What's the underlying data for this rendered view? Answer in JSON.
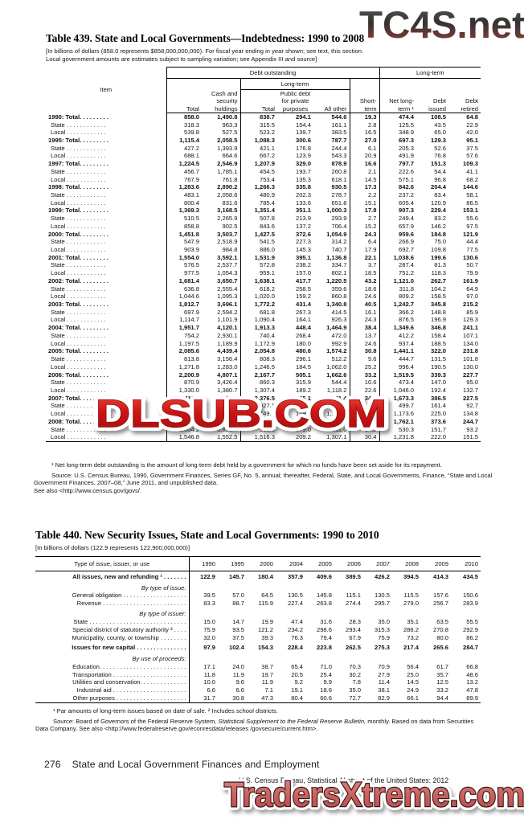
{
  "watermarks": {
    "top": "TC4S.net",
    "middle": "DLSUB.COM",
    "bottom": "TradersXtreme.com"
  },
  "table439": {
    "title": "Table 439. State and Local Governments—Indebtedness: 1990 to 2008",
    "note_line1": "[In billions of dollars (858.0 represents $858,000,000,000). For fiscal year ending in year shown; see text, this section.",
    "note_line2": "Local government amounts are estimates subject to sampling variation; see Appendix III and source]",
    "headers": {
      "item": "Item",
      "debt_outstanding": "Debt outstanding",
      "long_term_group": "Long-term",
      "total": "Total",
      "cash": "Cash and security holdings",
      "long_term_sub": "Long-term",
      "lt_total": "Total",
      "public_debt": "Public debt for private purposes",
      "all_other": "All other",
      "short_term": "Short-term",
      "net_long_term": "Net long-term ¹",
      "debt_issued": "Debt issued",
      "debt_retired": "Debt retired"
    },
    "rows": [
      {
        "label": "1990: Total. . . . . . . . .",
        "bold": true,
        "values": [
          "858.0",
          "1,490.8",
          "838.7",
          "294.1",
          "544.6",
          "19.3",
          "474.4",
          "108.5",
          "64.8"
        ]
      },
      {
        "label": "State . . . . . . . . . . . .",
        "bold": false,
        "values": [
          "318.3",
          "963.3",
          "315.5",
          "154.4",
          "161.1",
          "2.8",
          "125.5",
          "43.5",
          "22.9"
        ]
      },
      {
        "label": "Local . . . . . . . . . . . .",
        "bold": false,
        "values": [
          "539.8",
          "527.5",
          "523.2",
          "139.7",
          "383.5",
          "16.5",
          "348.9",
          "65.0",
          "42.0"
        ]
      },
      {
        "label": "1995: Total. . . . . . . . .",
        "bold": true,
        "values": [
          "1,115.4",
          "2,058.5",
          "1,088.3",
          "300.6",
          "787.7",
          "27.0",
          "697.3",
          "129.3",
          "95.1"
        ]
      },
      {
        "label": "State . . . . . . . . . . . .",
        "bold": false,
        "values": [
          "427.2",
          "1,393.9",
          "421.1",
          "176.8",
          "244.4",
          "6.1",
          "205.3",
          "52.6",
          "37.5"
        ]
      },
      {
        "label": "Local . . . . . . . . . . . .",
        "bold": false,
        "values": [
          "688.1",
          "664.6",
          "667.2",
          "123.9",
          "543.3",
          "20.9",
          "491.9",
          "76.8",
          "57.6"
        ]
      },
      {
        "label": "1997: Total. . . . . . . . .",
        "bold": true,
        "values": [
          "1,224.5",
          "2,546.9",
          "1,207.9",
          "329.0",
          "878.9",
          "16.6",
          "797.7",
          "151.3",
          "109.3"
        ]
      },
      {
        "label": "State . . . . . . . . . . . .",
        "bold": false,
        "values": [
          "456.7",
          "1,785.1",
          "454.5",
          "193.7",
          "260.8",
          "2.1",
          "222.6",
          "54.4",
          "41.1"
        ]
      },
      {
        "label": "Local . . . . . . . . . . . .",
        "bold": false,
        "values": [
          "767.9",
          "761.8",
          "753.4",
          "135.3",
          "618.1",
          "14.5",
          "575.1",
          "96.8",
          "68.2"
        ]
      },
      {
        "label": "1998: Total. . . . . . . . .",
        "bold": true,
        "values": [
          "1,283.6",
          "2,890.2",
          "1,266.3",
          "335.8",
          "930.5",
          "17.3",
          "842.6",
          "204.4",
          "144.6"
        ]
      },
      {
        "label": "State . . . . . . . . . . . .",
        "bold": false,
        "values": [
          "483.1",
          "2,058.6",
          "480.9",
          "202.3",
          "278.7",
          "2.2",
          "237.2",
          "83.4",
          "58.1"
        ]
      },
      {
        "label": "Local . . . . . . . . . . . .",
        "bold": false,
        "values": [
          "800.4",
          "831.6",
          "785.4",
          "133.6",
          "651.8",
          "15.1",
          "605.4",
          "120.9",
          "86.5"
        ]
      },
      {
        "label": "1999: Total. . . . . . . . .",
        "bold": true,
        "values": [
          "1,369.3",
          "3,168.5",
          "1,351.4",
          "351.1",
          "1,000.3",
          "17.8",
          "907.3",
          "229.4",
          "153.1"
        ]
      },
      {
        "label": "State . . . . . . . . . . . .",
        "bold": false,
        "values": [
          "510.5",
          "2,265.9",
          "507.8",
          "213.9",
          "293.9",
          "2.7",
          "249.4",
          "83.2",
          "55.6"
        ]
      },
      {
        "label": "Local . . . . . . . . . . . .",
        "bold": false,
        "values": [
          "858.8",
          "902.5",
          "843.6",
          "137.2",
          "706.4",
          "15.2",
          "657.9",
          "146.2",
          "97.5"
        ]
      },
      {
        "label": "2000: Total. . . . . . . . .",
        "bold": true,
        "values": [
          "1,451.8",
          "3,503.7",
          "1,427.5",
          "372.6",
          "1,054.9",
          "24.3",
          "959.6",
          "184.8",
          "121.9"
        ]
      },
      {
        "label": "State . . . . . . . . . . . .",
        "bold": false,
        "values": [
          "547.9",
          "2,518.9",
          "541.5",
          "227.3",
          "314.2",
          "6.4",
          "266.9",
          "75.0",
          "44.4"
        ]
      },
      {
        "label": "Local . . . . . . . . . . . .",
        "bold": false,
        "values": [
          "903.9",
          "984.8",
          "886.0",
          "145.3",
          "740.7",
          "17.9",
          "692.7",
          "109.8",
          "77.5"
        ]
      },
      {
        "label": "2001: Total. . . . . . . . .",
        "bold": true,
        "values": [
          "1,554.0",
          "3,592.1",
          "1,531.9",
          "395.1",
          "1,136.8",
          "22.1",
          "1,038.6",
          "199.6",
          "130.6"
        ]
      },
      {
        "label": "State . . . . . . . . . . . .",
        "bold": false,
        "values": [
          "576.5",
          "2,537.7",
          "572.8",
          "238.2",
          "334.7",
          "3.7",
          "287.4",
          "81.3",
          "50.7"
        ]
      },
      {
        "label": "Local . . . . . . . . . . . .",
        "bold": false,
        "values": [
          "977.5",
          "1,054.3",
          "959.1",
          "157.0",
          "802.1",
          "18.5",
          "751.2",
          "118.3",
          "79.9"
        ]
      },
      {
        "label": "2002: Total. . . . . . . . .",
        "bold": true,
        "values": [
          "1,681.4",
          "3,650.7",
          "1,638.1",
          "417.7",
          "1,220.5",
          "43.2",
          "1,121.0",
          "262.7",
          "161.9"
        ]
      },
      {
        "label": "State . . . . . . . . . . . .",
        "bold": false,
        "values": [
          "636.8",
          "2,555.4",
          "618.2",
          "258.5",
          "359.6",
          "18.6",
          "311.8",
          "104.2",
          "64.9"
        ]
      },
      {
        "label": "Local . . . . . . . . . . . .",
        "bold": false,
        "values": [
          "1,044.6",
          "1,095.3",
          "1,020.0",
          "159.2",
          "860.8",
          "24.6",
          "809.2",
          "158.5",
          "97.0"
        ]
      },
      {
        "label": "2003: Total. . . . . . . . .",
        "bold": true,
        "values": [
          "1,812.7",
          "3,696.1",
          "1,772.2",
          "431.4",
          "1,340.8",
          "40.5",
          "1,242.7",
          "345.8",
          "215.2"
        ]
      },
      {
        "label": "State . . . . . . . . . . . .",
        "bold": false,
        "values": [
          "697.9",
          "2,594.2",
          "681.8",
          "267.3",
          "414.5",
          "16.1",
          "366.2",
          "148.8",
          "85.9"
        ]
      },
      {
        "label": "Local . . . . . . . . . . . .",
        "bold": false,
        "values": [
          "1,114.7",
          "1,101.9",
          "1,090.4",
          "164.1",
          "926.3",
          "24.3",
          "876.5",
          "196.9",
          "129.3"
        ]
      },
      {
        "label": "2004: Total. . . . . . . . .",
        "bold": true,
        "values": [
          "1,951.7",
          "4,120.1",
          "1,913.3",
          "448.4",
          "1,464.9",
          "38.4",
          "1,349.6",
          "346.8",
          "241.1"
        ]
      },
      {
        "label": "State . . . . . . . . . . . .",
        "bold": false,
        "values": [
          "754.2",
          "2,930.1",
          "740.4",
          "268.4",
          "472.0",
          "13.7",
          "412.2",
          "158.4",
          "107.1"
        ]
      },
      {
        "label": "Local . . . . . . . . . . . .",
        "bold": false,
        "values": [
          "1,197.5",
          "1,189.9",
          "1,172.9",
          "180.0",
          "992.9",
          "24.6",
          "937.4",
          "188.5",
          "134.0"
        ]
      },
      {
        "label": "2005: Total. . . . . . . . .",
        "bold": true,
        "values": [
          "2,085.6",
          "4,439.4",
          "2,054.8",
          "480.6",
          "1,574.2",
          "30.8",
          "1,441.1",
          "322.0",
          "231.8"
        ]
      },
      {
        "label": "State . . . . . . . . . . . .",
        "bold": false,
        "values": [
          "813.8",
          "3,156.4",
          "808.3",
          "296.1",
          "512.2",
          "5.6",
          "444.7",
          "131.5",
          "101.8"
        ]
      },
      {
        "label": "Local . . . . . . . . . . . .",
        "bold": false,
        "values": [
          "1,271.8",
          "1,283.0",
          "1,246.5",
          "184.5",
          "1,062.0",
          "25.2",
          "996.4",
          "190.5",
          "130.0"
        ]
      },
      {
        "label": "2006: Total. . . . . . . . .",
        "bold": true,
        "values": [
          "2,200.9",
          "4,807.1",
          "2,167.7",
          "505.1",
          "1,662.6",
          "33.2",
          "1,519.5",
          "339.3",
          "227.7"
        ]
      },
      {
        "label": "State . . . . . . . . . . . .",
        "bold": false,
        "values": [
          "870.9",
          "3,426.4",
          "860.3",
          "315.9",
          "544.4",
          "10.6",
          "473.4",
          "147.0",
          "95.0"
        ]
      },
      {
        "label": "Local . . . . . . . . . . . .",
        "bold": false,
        "values": [
          "1,330.0",
          "1,380.7",
          "1,307.4",
          "189.2",
          "1,118.2",
          "22.6",
          "1,046.0",
          "192.4",
          "132.7"
        ]
      },
      {
        "label": "2007: Total. . . . . . . . .",
        "bold": true,
        "values": [
          "2,411.3",
          "5,122.7",
          "2,376.5",
          "535.1",
          "1,841.4",
          "34.8",
          "1,673.3",
          "386.5",
          "227.5"
        ]
      },
      {
        "label": "State . . . . . . . . . . . .",
        "bold": false,
        "values": [
          "936.5",
          "3,574.4",
          "927.1",
          "336.0",
          "591.1",
          "9.4",
          "499.7",
          "161.4",
          "92.7"
        ]
      },
      {
        "label": "Local . . . . . . . . . . . .",
        "bold": false,
        "values": [
          "1,474.8",
          "1,548.3",
          "1,449.4",
          "199.1",
          "1,250.3",
          "25.4",
          "1,173.6",
          "225.0",
          "134.8"
        ]
      },
      {
        "label": "2008: Total. . . . . . . . .",
        "bold": true,
        "values": [
          "2,550.9",
          "5,379.0",
          "2,506.3",
          "588.2",
          "1,918.2",
          "44.6",
          "1,762.1",
          "373.6",
          "244.7"
        ]
      },
      {
        "label": "State . . . . . . . . . . . .",
        "bold": false,
        "values": [
          "1,004.2",
          "3,826.4",
          "990.0",
          "379.0",
          "611.0",
          "14.2",
          "530.3",
          "151.7",
          "93.2"
        ]
      },
      {
        "label": "Local . . . . . . . . . . . .",
        "bold": false,
        "values": [
          "1,546.8",
          "1,552.5",
          "1,516.3",
          "209.2",
          "1,307.1",
          "30.4",
          "1,231.8",
          "222.0",
          "151.5"
        ]
      }
    ],
    "footnote": "¹ Net long-term debt outstanding is the amount of long-term debt held by a government for which no funds have been set aside for its repayment.",
    "source": "Source: U.S. Census Bureau, 1990, Government Finances, Series GF, No. 5, annual; thereafter, Federal, State, and Local Governments, Finance, “State and Local Government Finances, 2007–08,” June 2011, and unpublished data.",
    "see_also": "See also <http://www.census.gov/govs/."
  },
  "table440": {
    "title": "Table 440. New Security Issues, State and Local Governments: 1990 to 2010",
    "note": "[In billions of dollars (122.9 represents 122,900,000,000)]",
    "col_header": "Type of issue, issuer, or use",
    "years": [
      "1990",
      "1995",
      "2000",
      "2004",
      "2005",
      "2006",
      "2007",
      "2008",
      "2009",
      "2010"
    ],
    "rows": [
      {
        "label": "All issues, new and refunding ¹ . . . . . . .",
        "type": "bold",
        "values": [
          "122.9",
          "145.7",
          "180.4",
          "357.9",
          "409.6",
          "389.5",
          "426.2",
          "394.5",
          "414.3",
          "434.5"
        ]
      },
      {
        "label": "By type of issue:",
        "type": "section",
        "values": []
      },
      {
        "label": "General obligation . . . . . . . . . . . . . . . . . . .",
        "type": "data",
        "values": [
          "39.5",
          "57.0",
          "64.5",
          "130.5",
          "145.8",
          "115.1",
          "130.5",
          "115.5",
          "157.6",
          "150.6"
        ]
      },
      {
        "label": "Revenue  . . . . . . . . . . . . . . . . . . . . . . . . .",
        "type": "data",
        "values": [
          "83.3",
          "88.7",
          "115.9",
          "227.4",
          "263.8",
          "274.4",
          "295.7",
          "279.0",
          "256.7",
          "283.9"
        ]
      },
      {
        "label": "By type of issuer:",
        "type": "section",
        "values": []
      },
      {
        "label": "State . . . . . . . . . . . . . . . . . . . . . . . . . . . . .",
        "type": "data",
        "values": [
          "15.0",
          "14.7",
          "19.9",
          "47.4",
          "31.6",
          "28.3",
          "35.0",
          "35.1",
          "63.5",
          "55.5"
        ]
      },
      {
        "label": "Special district of statutory authority ² . . . .",
        "type": "data",
        "values": [
          "75.9",
          "93.5",
          "121.2",
          "234.2",
          "298.6",
          "293.4",
          "315.3",
          "286.2",
          "270.8",
          "292.9"
        ]
      },
      {
        "label": "Municipality, county, or township . . . . . . . .",
        "type": "data",
        "values": [
          "32.0",
          "37.5",
          "39.3",
          "76.3",
          "79.4",
          "67.9",
          "75.9",
          "73.2",
          "80.0",
          "86.2"
        ]
      },
      {
        "label": "Issues for new capital . . . . . . . . . . . . . . .",
        "type": "bold",
        "values": [
          "97.9",
          "102.4",
          "154.3",
          "228.4",
          "223.8",
          "262.5",
          "275.3",
          "217.4",
          "265.6",
          "284.7"
        ]
      },
      {
        "label": "By use of proceeds:",
        "type": "section",
        "values": []
      },
      {
        "label": "Education. . . . . . . . . . . . . . . . . . . . . . . . . .",
        "type": "data",
        "values": [
          "17.1",
          "24.0",
          "38.7",
          "65.4",
          "71.0",
          "70.3",
          "70.9",
          "56.4",
          "61.7",
          "66.8"
        ]
      },
      {
        "label": "Transportation . . . . . . . . . . . . . . . . . . . . . .",
        "type": "data",
        "values": [
          "11.8",
          "11.9",
          "19.7",
          "20.5",
          "25.4",
          "30.2",
          "27.9",
          "25.0",
          "35.7",
          "48.6"
        ]
      },
      {
        "label": "Utilities and conservation. . . . . . . . . . . . . .",
        "type": "data",
        "values": [
          "10.0",
          "9.6",
          "11.9",
          "9.2",
          "9.9",
          "7.8",
          "11.4",
          "14.5",
          "12.5",
          "13.2"
        ]
      },
      {
        "label": "Industrial aid  . . . . . . . . . . . . . . . . . . . . . .",
        "type": "data",
        "values": [
          "6.6",
          "6.6",
          "7.1",
          "19.1",
          "18.6",
          "35.0",
          "38.1",
          "24.9",
          "33.2",
          "47.8"
        ]
      },
      {
        "label": "Other purposes . . . . . . . . . . . . . . . . . . . . .",
        "type": "data",
        "values": [
          "31.7",
          "30.8",
          "47.3",
          "80.4",
          "60.6",
          "72.7",
          "82.9",
          "66.1",
          "94.4",
          "89.9"
        ]
      }
    ],
    "footnote": "¹ Par amounts of long-term issues based on date of sale. ² Includes school districts.",
    "source_before": "Source: Board of Governors of the Federal Reserve System, ",
    "source_italic": "Statistical Supplement to the Federal Reserve Bulletin,",
    "source_after": " monthly. Based on data from Securities Data Company. See also <http://www.federalreserve.gov/econresdata/releases /govsecure/current.htm>."
  },
  "footer": {
    "page_number": "276",
    "section_title": "State and Local Government Finances and Employment",
    "credit": "U.S. Census Bureau, Statistical Abstract of the United States: 2012"
  },
  "colors": {
    "watermark_red": "#c41212",
    "watermark_salmon": "#c86060",
    "watermark_dark": "#3a3a3a"
  }
}
